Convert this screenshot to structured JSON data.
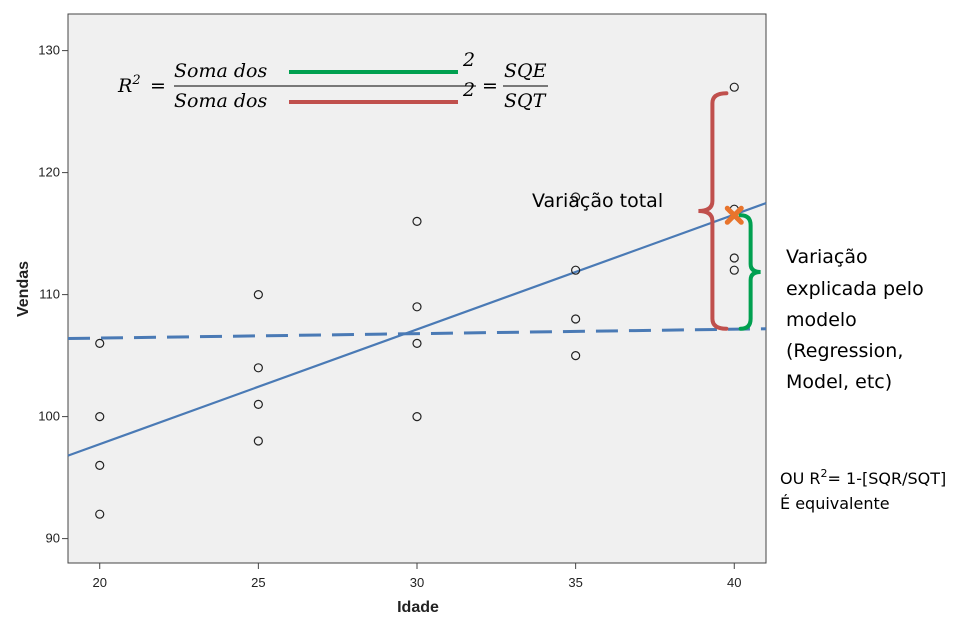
{
  "chart_data": {
    "type": "scatter",
    "xlabel": "Idade",
    "ylabel": "Vendas",
    "xlim": [
      19,
      41
    ],
    "ylim": [
      88,
      133
    ],
    "x_ticks": [
      20,
      25,
      30,
      35,
      40
    ],
    "y_ticks": [
      90,
      100,
      110,
      120,
      130
    ],
    "grid": false,
    "points": [
      [
        20,
        92
      ],
      [
        20,
        96
      ],
      [
        20,
        100
      ],
      [
        20,
        106
      ],
      [
        25,
        98
      ],
      [
        25,
        101
      ],
      [
        25,
        104
      ],
      [
        25,
        110
      ],
      [
        30,
        100
      ],
      [
        30,
        106
      ],
      [
        30,
        109
      ],
      [
        30,
        116
      ],
      [
        35,
        105
      ],
      [
        35,
        108
      ],
      [
        35,
        112
      ],
      [
        35,
        118
      ],
      [
        40,
        112
      ],
      [
        40,
        113
      ],
      [
        40,
        117
      ],
      [
        40,
        127
      ]
    ],
    "regression_line": {
      "x": [
        19,
        41
      ],
      "y": [
        96.8,
        117.5
      ]
    },
    "mean_line": {
      "x": [
        19,
        41
      ],
      "y": [
        106.4,
        107.2
      ]
    },
    "highlight_point": {
      "x": 40,
      "y": 116.5
    },
    "braces": {
      "total": {
        "x": 39.5,
        "y_from": 107.2,
        "y_to": 126.5,
        "color": "#c0504d"
      },
      "explained": {
        "x": 40.2,
        "y_from": 107.2,
        "y_to": 116.5,
        "color": "#00a050"
      }
    },
    "colors": {
      "background": "#f0f0f0",
      "regression": "#4a7ab5",
      "mean": "#4a7ab5",
      "highlight": "#e8742c"
    }
  },
  "formula": {
    "lhs": "R",
    "lhs_sup": "2",
    "eq": "=",
    "num_text": "Soma dos",
    "den_text": "Soma dos",
    "num_sup": "2",
    "den_sup": "2",
    "rhs_num": "SQE",
    "rhs_den": "SQT",
    "green": "#00a050",
    "red": "#c0504d"
  },
  "annotations": {
    "total_label": "Variação total",
    "explained_lines": [
      "Variação",
      "explicada pelo",
      "modelo",
      "(Regression,",
      "Model, etc)"
    ],
    "note_line1_prefix": "OU R",
    "note_line1_sup": "2",
    "note_line1_suffix": "= 1-[SQR/SQT]",
    "note_line2": "É equivalente"
  }
}
